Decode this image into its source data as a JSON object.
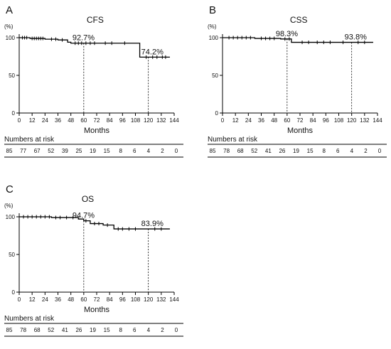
{
  "chart_data": [
    {
      "type": "line",
      "panel_label": "A",
      "title": "CFS",
      "unit_label": "(%)",
      "xlabel": "Months",
      "xlim": [
        0,
        144
      ],
      "ylim": [
        0,
        100
      ],
      "x_ticks": [
        0,
        12,
        24,
        36,
        48,
        60,
        72,
        84,
        96,
        108,
        120,
        132,
        144
      ],
      "y_ticks": [
        0,
        50,
        100
      ],
      "grid": false,
      "series": [
        {
          "step_points": [
            [
              0,
              100
            ],
            [
              10,
              100
            ],
            [
              10,
              99
            ],
            [
              24,
              99
            ],
            [
              24,
              98
            ],
            [
              36,
              98
            ],
            [
              36,
              97
            ],
            [
              45,
              97
            ],
            [
              45,
              94
            ],
            [
              48,
              94
            ],
            [
              48,
              92.7
            ],
            [
              112,
              92.7
            ],
            [
              112,
              74.2
            ],
            [
              140,
              74.2
            ]
          ],
          "censor_marks": [
            [
              3,
              100
            ],
            [
              5,
              100
            ],
            [
              7,
              100
            ],
            [
              12,
              99
            ],
            [
              14,
              99
            ],
            [
              16,
              99
            ],
            [
              18,
              99
            ],
            [
              20,
              99
            ],
            [
              22,
              99
            ],
            [
              30,
              98
            ],
            [
              34,
              98
            ],
            [
              40,
              97
            ],
            [
              52,
              92.7
            ],
            [
              55,
              92.7
            ],
            [
              58,
              92.7
            ],
            [
              62,
              92.7
            ],
            [
              66,
              92.7
            ],
            [
              70,
              92.7
            ],
            [
              80,
              92.7
            ],
            [
              86,
              92.7
            ],
            [
              98,
              92.7
            ],
            [
              118,
              74.2
            ],
            [
              124,
              74.2
            ],
            [
              128,
              74.2
            ],
            [
              133,
              74.2
            ],
            [
              136,
              74.2
            ]
          ]
        }
      ],
      "annotations": [
        {
          "text": "92.7%",
          "x": 60,
          "y": 92.7
        },
        {
          "text": "74.2%",
          "x": 120,
          "y": 74.2
        }
      ],
      "reference_lines_x": [
        60,
        120
      ],
      "risk_table": {
        "title": "Numbers at risk",
        "values": [
          85,
          77,
          67,
          52,
          39,
          25,
          19,
          15,
          8,
          6,
          4,
          2,
          0
        ]
      }
    },
    {
      "type": "line",
      "panel_label": "B",
      "title": "CSS",
      "unit_label": "(%)",
      "xlabel": "Months",
      "xlim": [
        0,
        144
      ],
      "ylim": [
        0,
        100
      ],
      "x_ticks": [
        0,
        12,
        24,
        36,
        48,
        60,
        72,
        84,
        96,
        108,
        120,
        132,
        144
      ],
      "y_ticks": [
        0,
        50,
        100
      ],
      "grid": false,
      "series": [
        {
          "step_points": [
            [
              0,
              100
            ],
            [
              30,
              100
            ],
            [
              30,
              99
            ],
            [
              54,
              99
            ],
            [
              54,
              98.3
            ],
            [
              64,
              98.3
            ],
            [
              64,
              93.8
            ],
            [
              140,
              93.8
            ]
          ],
          "censor_marks": [
            [
              6,
              100
            ],
            [
              10,
              100
            ],
            [
              14,
              100
            ],
            [
              18,
              100
            ],
            [
              22,
              100
            ],
            [
              26,
              100
            ],
            [
              36,
              99
            ],
            [
              40,
              99
            ],
            [
              44,
              99
            ],
            [
              48,
              99
            ],
            [
              58,
              98.3
            ],
            [
              62,
              98.3
            ],
            [
              74,
              93.8
            ],
            [
              80,
              93.8
            ],
            [
              88,
              93.8
            ],
            [
              94,
              93.8
            ],
            [
              100,
              93.8
            ],
            [
              112,
              93.8
            ],
            [
              126,
              93.8
            ],
            [
              132,
              93.8
            ]
          ]
        }
      ],
      "annotations": [
        {
          "text": "98.3%",
          "x": 60,
          "y": 98.3
        },
        {
          "text": "93.8%",
          "x": 120,
          "y": 93.8
        }
      ],
      "reference_lines_x": [
        60,
        120
      ],
      "risk_table": {
        "title": "Numbers at risk",
        "values": [
          85,
          78,
          68,
          52,
          41,
          26,
          19,
          15,
          8,
          6,
          4,
          2,
          0
        ]
      }
    },
    {
      "type": "line",
      "panel_label": "C",
      "title": "OS",
      "unit_label": "(%)",
      "xlabel": "Months",
      "xlim": [
        0,
        144
      ],
      "ylim": [
        0,
        100
      ],
      "x_ticks": [
        0,
        12,
        24,
        36,
        48,
        60,
        72,
        84,
        96,
        108,
        120,
        132,
        144
      ],
      "y_ticks": [
        0,
        50,
        100
      ],
      "grid": false,
      "series": [
        {
          "step_points": [
            [
              0,
              100
            ],
            [
              30,
              100
            ],
            [
              30,
              99
            ],
            [
              55,
              99
            ],
            [
              55,
              97
            ],
            [
              60,
              97
            ],
            [
              60,
              94.7
            ],
            [
              66,
              94.7
            ],
            [
              66,
              91
            ],
            [
              78,
              91
            ],
            [
              78,
              89
            ],
            [
              88,
              89
            ],
            [
              88,
              83.9
            ],
            [
              140,
              83.9
            ]
          ],
          "censor_marks": [
            [
              4,
              100
            ],
            [
              8,
              100
            ],
            [
              12,
              100
            ],
            [
              16,
              100
            ],
            [
              20,
              100
            ],
            [
              24,
              100
            ],
            [
              28,
              100
            ],
            [
              34,
              99
            ],
            [
              38,
              99
            ],
            [
              44,
              99
            ],
            [
              50,
              99
            ],
            [
              62,
              94.7
            ],
            [
              70,
              91
            ],
            [
              74,
              91
            ],
            [
              82,
              89
            ],
            [
              92,
              83.9
            ],
            [
              96,
              83.9
            ],
            [
              102,
              83.9
            ],
            [
              108,
              83.9
            ],
            [
              126,
              83.9
            ],
            [
              132,
              83.9
            ]
          ]
        }
      ],
      "annotations": [
        {
          "text": "94.7%",
          "x": 60,
          "y": 94.7
        },
        {
          "text": "83.9%",
          "x": 120,
          "y": 83.9
        }
      ],
      "reference_lines_x": [
        60,
        120
      ],
      "risk_table": {
        "title": "Numbers at risk",
        "values": [
          85,
          78,
          68,
          52,
          41,
          26,
          19,
          15,
          8,
          6,
          4,
          2,
          0
        ]
      }
    }
  ]
}
